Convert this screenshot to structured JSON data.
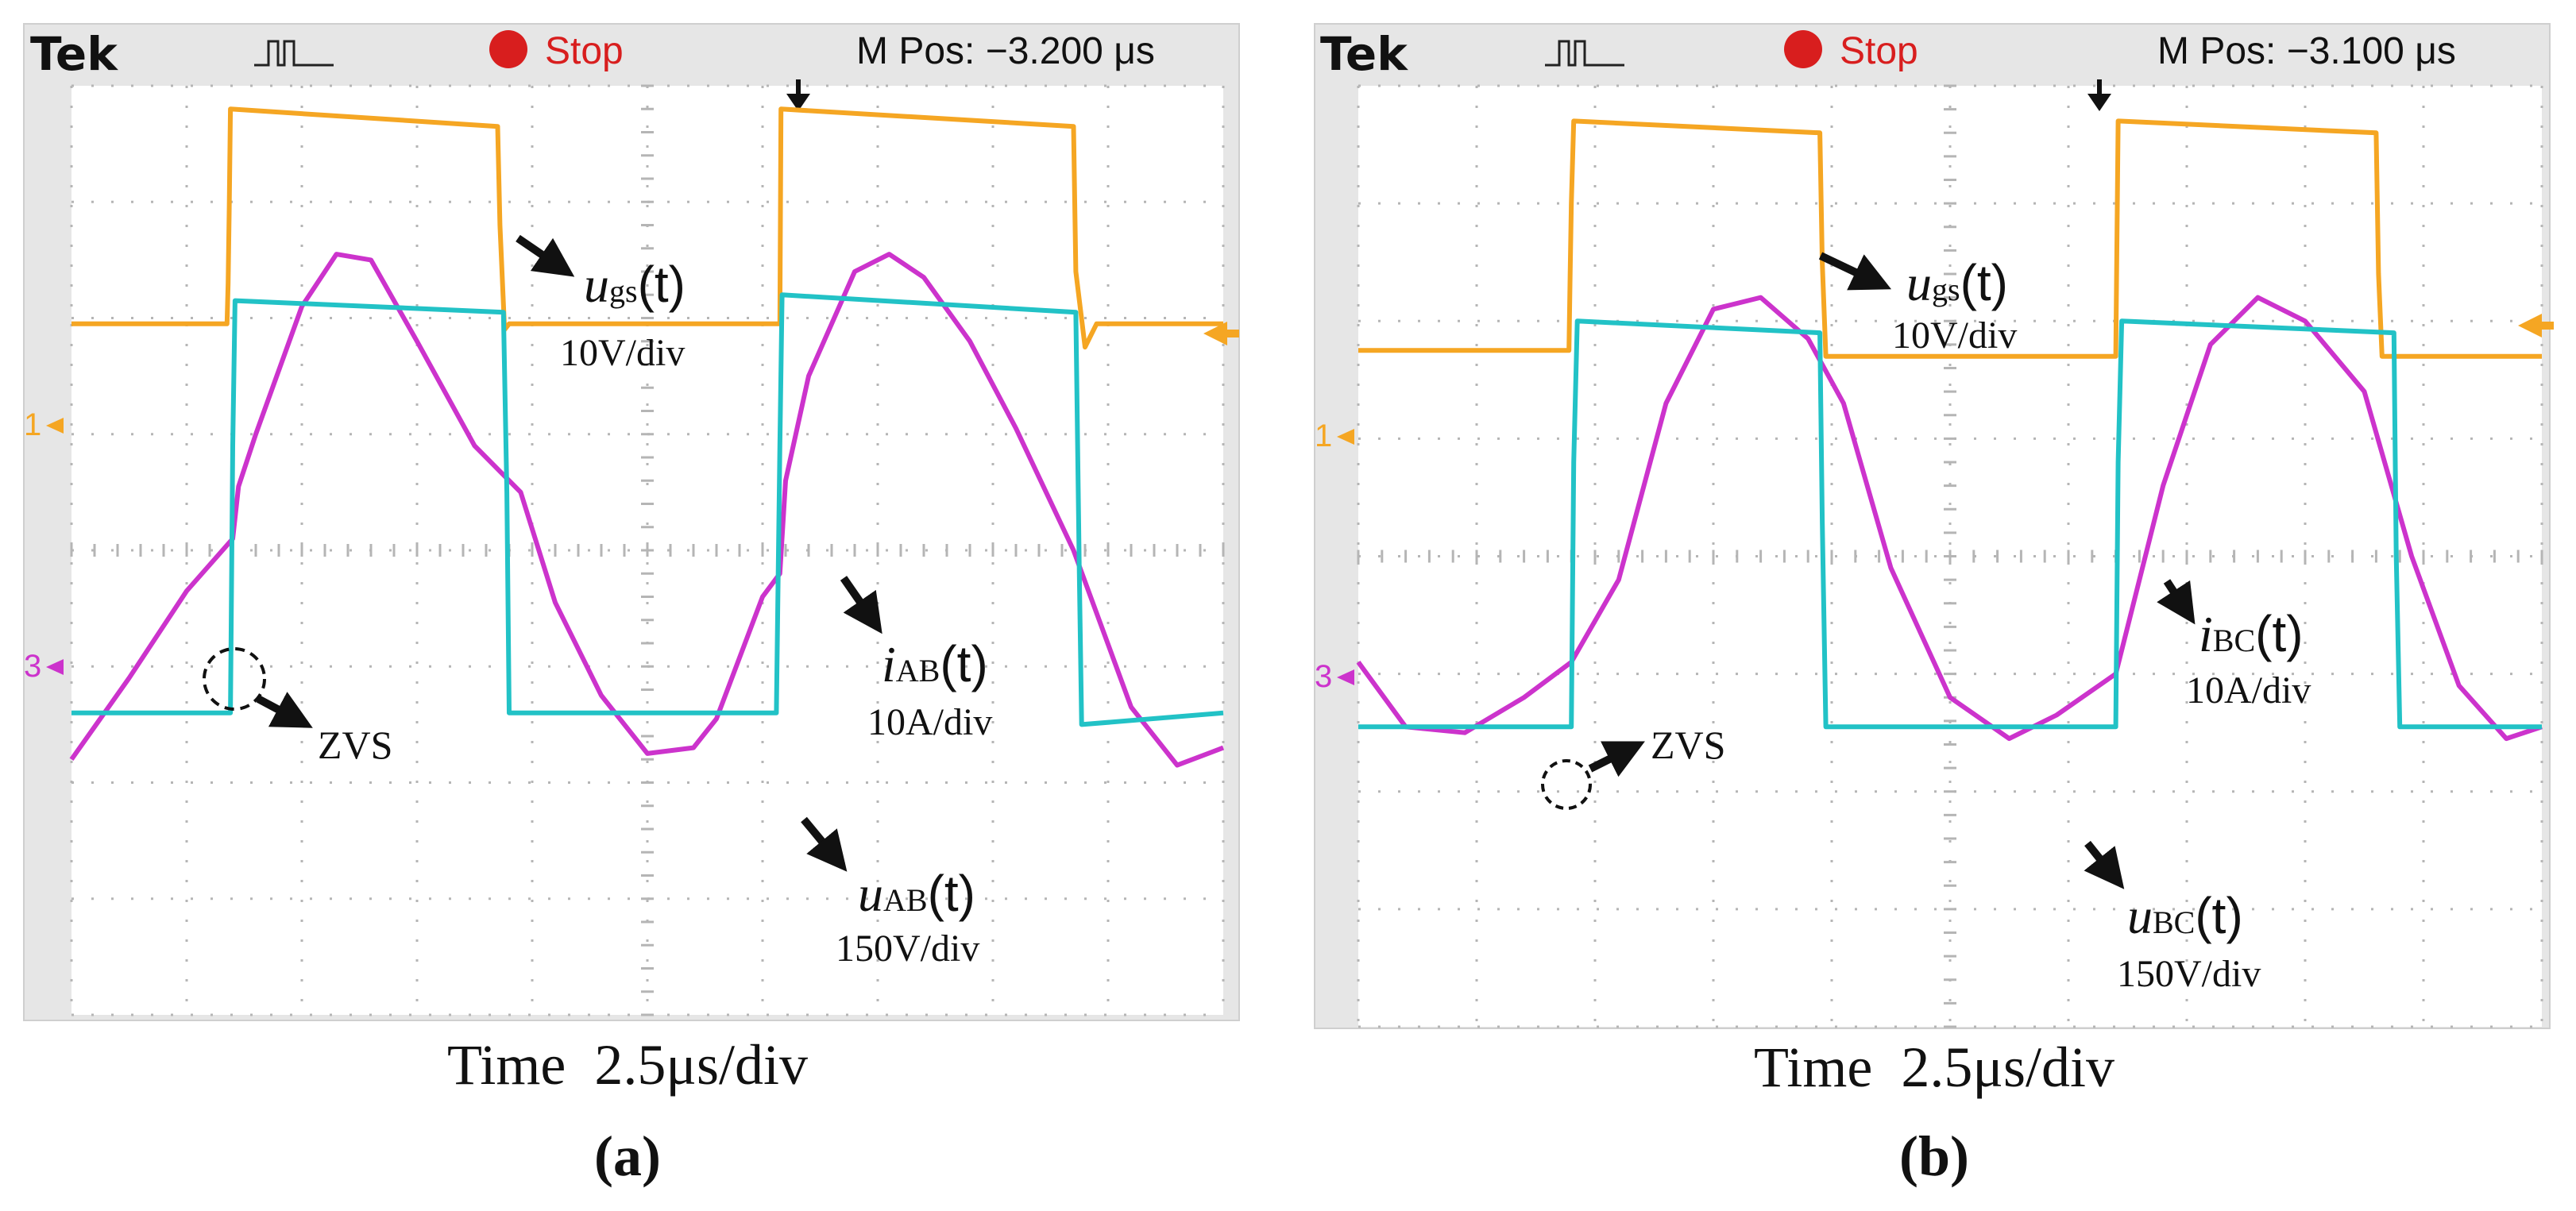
{
  "panels": [
    {
      "brand": "Tek",
      "status": "Stop",
      "position": "M Pos: −3.200 μs",
      "time_label": "Time  2.5μs/div",
      "caption": "(a)",
      "ch1_marker": "1",
      "ch3_marker": "3",
      "ann": {
        "ugs_main": "u",
        "ugs_sub": "gs",
        "ugs_tail": "(t)",
        "ugs_scale": "10V/div",
        "i_main": "i",
        "i_sub": "AB",
        "i_tail": "(t)",
        "i_scale": "10A/div",
        "u_main": "u",
        "u_sub": "AB",
        "u_tail": "(t)",
        "u_scale": "150V/div",
        "zvs": "ZVS"
      }
    },
    {
      "brand": "Tek",
      "status": "Stop",
      "position": "M Pos: −3.100 μs",
      "time_label": "Time  2.5μs/div",
      "caption": "(b)",
      "ch1_marker": "1",
      "ch3_marker": "3",
      "ann": {
        "ugs_main": "u",
        "ugs_sub": "gs",
        "ugs_tail": "(t)",
        "ugs_scale": "10V/div",
        "i_main": "i",
        "i_sub": "BC",
        "i_tail": "(t)",
        "i_scale": "10A/div",
        "u_main": "u",
        "u_sub": "BC",
        "u_tail": "(t)",
        "u_scale": "150V/div",
        "zvs": "ZVS"
      }
    }
  ],
  "chart_data": [
    {
      "type": "line",
      "title": "(a)",
      "xlabel": "Time 2.5μs/div",
      "x_div": [
        0,
        10
      ],
      "y_div": [
        -4,
        4
      ],
      "grid": true,
      "series": [
        {
          "name": "u_gs(t)",
          "scale": "10V/div",
          "color": "#F5A623",
          "x": [
            0,
            1.35,
            1.36,
            1.37,
            1.38,
            3.7,
            3.72,
            3.76,
            3.8,
            6.15,
            6.16,
            8.7,
            8.72,
            8.8,
            8.9,
            10
          ],
          "y": [
            1.95,
            1.95,
            2.3,
            2.95,
            3.8,
            3.65,
            2.8,
            1.9,
            1.95,
            1.95,
            3.8,
            3.65,
            2.4,
            1.75,
            1.95,
            1.95
          ]
        },
        {
          "name": "i_AB(t)",
          "scale": "10A/div",
          "color": "#CC33CC",
          "x": [
            0,
            0.5,
            1.0,
            1.4,
            1.45,
            1.6,
            2.0,
            2.3,
            2.6,
            3.0,
            3.5,
            3.9,
            4.2,
            4.6,
            5.0,
            5.4,
            5.6,
            6.0,
            6.15,
            6.2,
            6.4,
            6.8,
            7.1,
            7.4,
            7.8,
            8.2,
            8.7,
            9.2,
            9.6,
            10
          ],
          "y": [
            -1.8,
            -1.1,
            -0.35,
            0.1,
            0.55,
            1.0,
            2.1,
            2.55,
            2.5,
            1.8,
            0.9,
            0.5,
            -0.45,
            -1.25,
            -1.75,
            -1.7,
            -1.45,
            -0.4,
            -0.2,
            0.6,
            1.5,
            2.4,
            2.55,
            2.35,
            1.8,
            1.05,
            0,
            -1.35,
            -1.85,
            -1.7
          ]
        },
        {
          "name": "u_AB(t)",
          "scale": "150V/div",
          "color": "#22C2C6",
          "x": [
            0,
            1.38,
            1.4,
            1.42,
            3.75,
            3.78,
            3.8,
            6.12,
            6.15,
            6.17,
            8.72,
            8.75,
            8.77,
            10
          ],
          "y": [
            -1.4,
            -1.4,
            0.9,
            2.15,
            2.05,
            0.5,
            -1.4,
            -1.4,
            0.9,
            2.2,
            2.05,
            -0.2,
            -1.5,
            -1.4
          ]
        }
      ],
      "annotations": [
        "u_gs(t) 10V/div",
        "i_AB(t) 10A/div",
        "u_AB(t) 150V/div",
        "ZVS"
      ]
    },
    {
      "type": "line",
      "title": "(b)",
      "xlabel": "Time 2.5μs/div",
      "x_div": [
        0,
        10
      ],
      "y_div": [
        -4,
        4
      ],
      "grid": true,
      "series": [
        {
          "name": "u_gs(t)",
          "scale": "10V/div",
          "color": "#F5A623",
          "x": [
            0,
            1.78,
            1.79,
            1.8,
            1.82,
            3.9,
            3.92,
            3.95,
            6.4,
            6.42,
            8.6,
            8.62,
            8.65,
            10
          ],
          "y": [
            1.75,
            1.75,
            2.4,
            3.0,
            3.7,
            3.6,
            2.5,
            1.7,
            1.7,
            3.7,
            3.6,
            2.4,
            1.7,
            1.7
          ]
        },
        {
          "name": "i_BC(t)",
          "scale": "10A/div",
          "color": "#CC33CC",
          "x": [
            0,
            0.4,
            0.9,
            1.4,
            1.8,
            2.2,
            2.6,
            3.0,
            3.4,
            3.8,
            4.1,
            4.5,
            5.0,
            5.5,
            5.9,
            6.4,
            6.8,
            7.2,
            7.6,
            8.0,
            8.5,
            8.9,
            9.3,
            9.7,
            10
          ],
          "y": [
            -0.9,
            -1.45,
            -1.5,
            -1.2,
            -0.9,
            -0.2,
            1.3,
            2.1,
            2.2,
            1.85,
            1.3,
            -0.1,
            -1.2,
            -1.55,
            -1.35,
            -1.0,
            0.6,
            1.8,
            2.2,
            2.0,
            1.4,
            0.0,
            -1.1,
            -1.55,
            -1.45
          ]
        },
        {
          "name": "u_BC(t)",
          "scale": "150V/div",
          "color": "#22C2C6",
          "x": [
            0,
            1.8,
            1.82,
            1.85,
            3.9,
            3.92,
            3.95,
            6.4,
            6.42,
            6.45,
            8.75,
            8.77,
            8.8,
            10
          ],
          "y": [
            -1.45,
            -1.45,
            0.8,
            2.0,
            1.9,
            0.3,
            -1.45,
            -1.45,
            0.8,
            2.0,
            1.9,
            0.0,
            -1.45,
            -1.45
          ]
        }
      ],
      "annotations": [
        "u_gs(t) 10V/div",
        "i_BC(t) 10A/div",
        "u_BC(t) 150V/div",
        "ZVS"
      ]
    }
  ]
}
